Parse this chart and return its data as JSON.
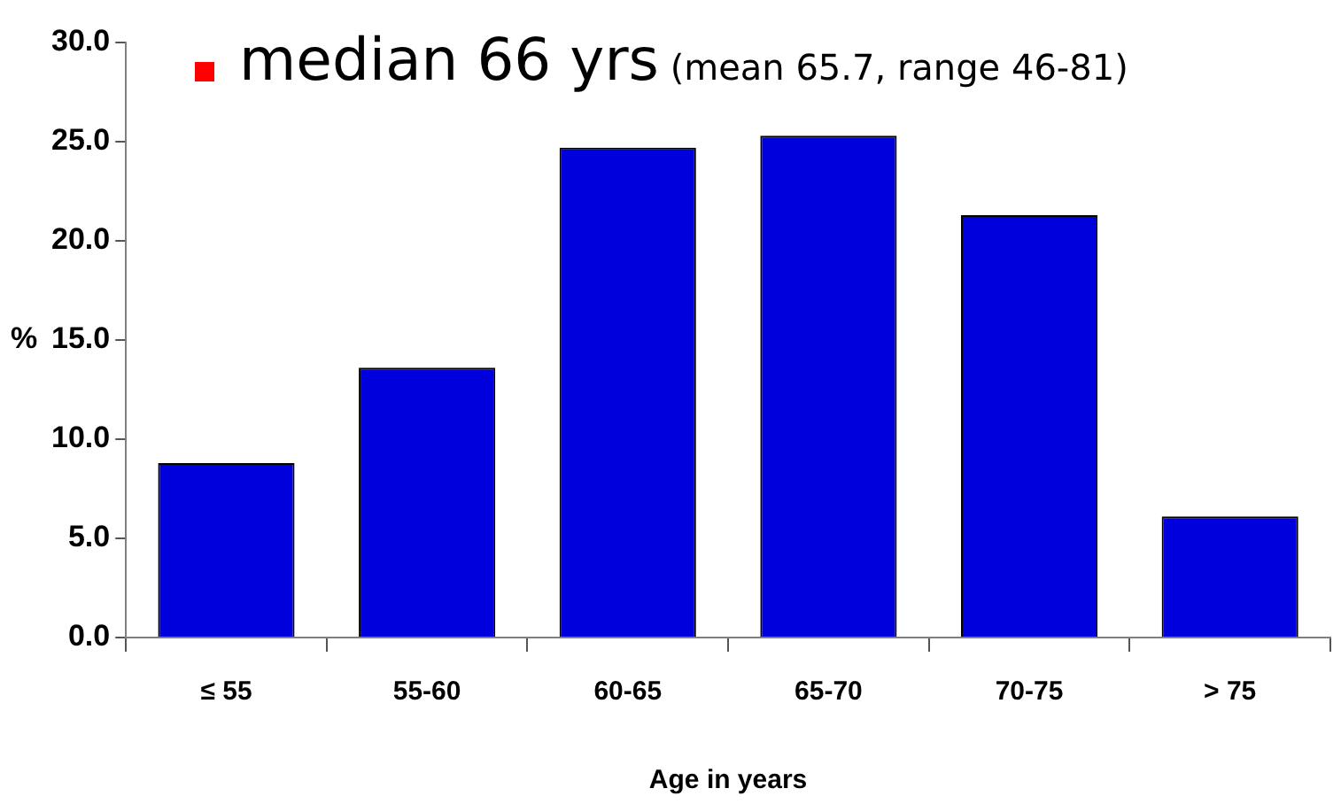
{
  "chart_data": {
    "type": "bar",
    "xlabel": "Age in years",
    "ylabel": "%",
    "categories": [
      "≤ 55",
      "55-60",
      "60-65",
      "65-70",
      "70-75",
      "> 75"
    ],
    "values": [
      8.8,
      13.6,
      24.7,
      25.3,
      21.3,
      6.1
    ],
    "color": "#0000dd",
    "ylim": [
      0,
      30
    ],
    "yticks": [
      {
        "value": 0,
        "label": "0.0"
      },
      {
        "value": 5,
        "label": "5.0"
      },
      {
        "value": 10,
        "label": "10.0"
      },
      {
        "value": 15,
        "label": "15.0"
      },
      {
        "value": 20,
        "label": "20.0"
      },
      {
        "value": 25,
        "label": "25.0"
      },
      {
        "value": 30,
        "label": "30.0"
      }
    ],
    "grid": false,
    "legend": false,
    "annotations": [
      "median 66 yrs",
      "(mean 65.7, range 46-81)"
    ]
  }
}
